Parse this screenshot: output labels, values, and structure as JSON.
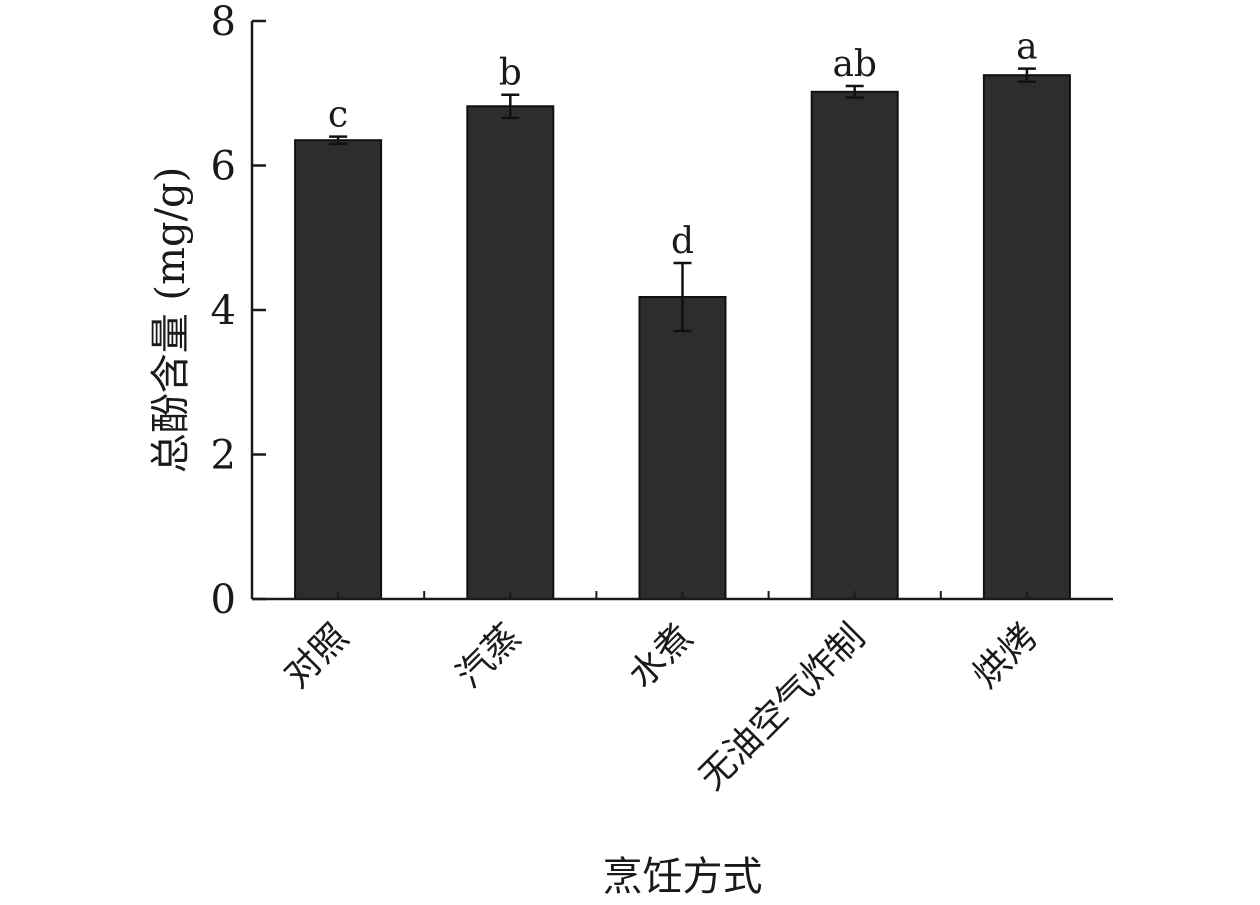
{
  "chart_data": {
    "type": "bar",
    "title": "",
    "xlabel": "烹饪方式",
    "ylabel": "总酚含量 (mg/g)",
    "ylim": [
      0,
      8
    ],
    "yticks": [
      0,
      2,
      4,
      6,
      8
    ],
    "grid": false,
    "legend": "none",
    "categories": [
      "对照",
      "汽蒸",
      "水煮",
      "无油空气炸制",
      "烘烤"
    ],
    "values": [
      6.35,
      6.82,
      4.18,
      7.02,
      7.25
    ],
    "errors": [
      0.05,
      0.16,
      0.47,
      0.08,
      0.09
    ],
    "significance": [
      "c",
      "b",
      "d",
      "ab",
      "a"
    ],
    "bar_color": "#2c2e2b",
    "axis_color": "#1a1a1a"
  }
}
